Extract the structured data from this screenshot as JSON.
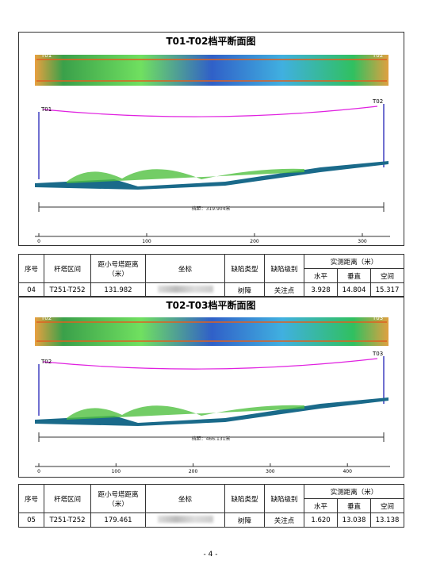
{
  "sections": [
    {
      "figure": {
        "title": "T01-T02档平断面图",
        "tower_start": "T01",
        "tower_end": "T02",
        "span_label": "档距：319.904米",
        "axis_ticks": [
          0,
          100,
          200,
          300
        ]
      },
      "table": {
        "header": [
          "序号",
          "杆塔区间",
          "距小号塔距离（米）",
          "坐标",
          "缺陷类型",
          "缺陷级别",
          "实测距离（米）"
        ],
        "subheader": [
          "水平",
          "垂直",
          "空间"
        ],
        "row": [
          "04",
          "T251-T252",
          "131.982",
          "树障",
          "关注点",
          "3.928",
          "14.804",
          "15.317"
        ]
      }
    },
    {
      "figure": {
        "title": "T02-T03档平断面图",
        "tower_start": "T02",
        "tower_end": "T03",
        "span_label": "档距：466.131米",
        "axis_ticks": [
          0,
          100,
          200,
          300,
          400
        ]
      },
      "table": {
        "header": [
          "序号",
          "杆塔区间",
          "距小号塔距离（米）",
          "坐标",
          "缺陷类型",
          "缺陷级别",
          "实测距离（米）"
        ],
        "subheader": [
          "水平",
          "垂直",
          "空间"
        ],
        "row": [
          "05",
          "T251-T252",
          "179.461",
          "树障",
          "关注点",
          "1.620",
          "13.038",
          "13.138"
        ]
      }
    }
  ],
  "footer": {
    "page": "- 4 -"
  }
}
